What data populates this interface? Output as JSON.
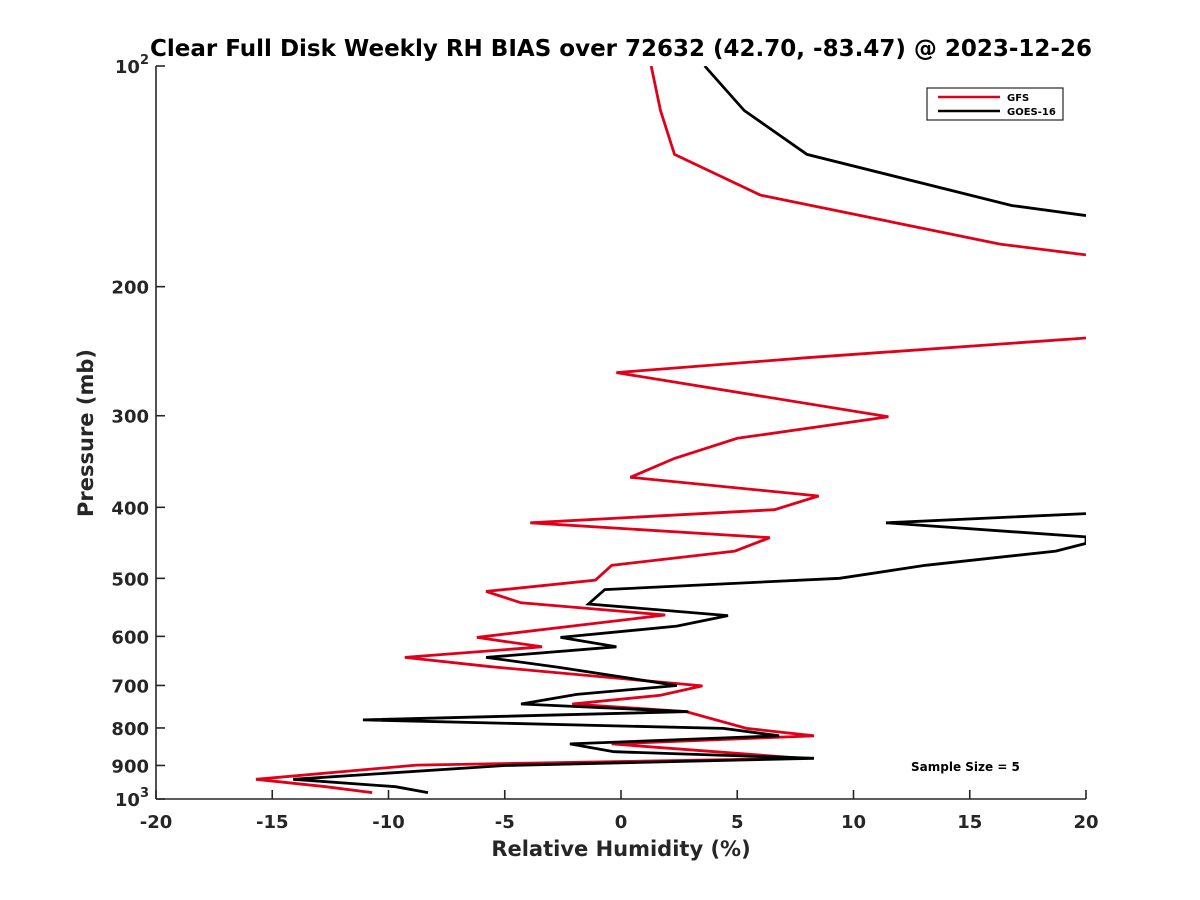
{
  "chart_data": {
    "type": "line",
    "title": "Clear Full Disk Weekly RH BIAS over 72632 (42.70, -83.47) @ 2023-12-26",
    "xlabel": "Relative Humidity (%)",
    "ylabel": "Pressure (mb)",
    "xlim": [
      -20,
      20
    ],
    "ylim": [
      100,
      1000
    ],
    "y_scale": "log",
    "y_reversed": true,
    "grid": false,
    "legend_position": "top-right",
    "annotation": "Sample Size = 5",
    "x_ticks": [
      {
        "value": -20,
        "label": "-20"
      },
      {
        "value": -15,
        "label": "-15"
      },
      {
        "value": -10,
        "label": "-10"
      },
      {
        "value": -5,
        "label": "-5"
      },
      {
        "value": 0,
        "label": "0"
      },
      {
        "value": 5,
        "label": "5"
      },
      {
        "value": 10,
        "label": "10"
      },
      {
        "value": 15,
        "label": "15"
      },
      {
        "value": 20,
        "label": "20"
      }
    ],
    "y_ticks": [
      {
        "value": 100,
        "base": "10",
        "exp": "2"
      },
      {
        "value": 200,
        "base": "200",
        "exp": ""
      },
      {
        "value": 300,
        "base": "300",
        "exp": ""
      },
      {
        "value": 400,
        "base": "400",
        "exp": ""
      },
      {
        "value": 500,
        "base": "500",
        "exp": ""
      },
      {
        "value": 600,
        "base": "600",
        "exp": ""
      },
      {
        "value": 700,
        "base": "700",
        "exp": ""
      },
      {
        "value": 800,
        "base": "800",
        "exp": ""
      },
      {
        "value": 900,
        "base": "900",
        "exp": ""
      },
      {
        "value": 1000,
        "base": "10",
        "exp": "3"
      }
    ],
    "series": [
      {
        "name": "GFS",
        "color": "#e0001a",
        "points": [
          [
            1.3,
            100
          ],
          [
            1.7,
            115
          ],
          [
            2.3,
            132
          ],
          [
            6.0,
            150
          ],
          [
            16.3,
            175
          ],
          [
            20,
            181
          ],
          [
            null,
            null
          ],
          [
            20,
            235
          ],
          [
            8.0,
            250
          ],
          [
            -0.2,
            262
          ],
          [
            11.5,
            301
          ],
          [
            5.0,
            322
          ],
          [
            2.3,
            343
          ],
          [
            0.4,
            364
          ],
          [
            8.5,
            386
          ],
          [
            6.6,
            403
          ],
          [
            -3.9,
            420
          ],
          [
            6.4,
            440
          ],
          [
            4.9,
            459
          ],
          [
            -0.4,
            480
          ],
          [
            -1.1,
            503
          ],
          [
            -5.8,
            521
          ],
          [
            -4.3,
            540
          ],
          [
            1.9,
            561
          ],
          [
            -6.2,
            602
          ],
          [
            -3.4,
            620
          ],
          [
            -9.3,
            641
          ],
          [
            -5.6,
            660
          ],
          [
            3.5,
            701
          ],
          [
            1.7,
            722
          ],
          [
            -2.1,
            742
          ],
          [
            2.8,
            760
          ],
          [
            5.4,
            801
          ],
          [
            8.3,
            820
          ],
          [
            -0.4,
            841
          ],
          [
            7.8,
            880
          ],
          [
            -8.8,
            899
          ],
          [
            -15.7,
            940
          ],
          [
            -12.7,
            962
          ],
          [
            -10.7,
            980
          ]
        ]
      },
      {
        "name": "GOES-16",
        "color": "#000000",
        "points": [
          [
            3.6,
            100
          ],
          [
            5.3,
            115
          ],
          [
            8.0,
            132
          ],
          [
            16.8,
            155
          ],
          [
            20,
            160
          ],
          [
            null,
            null
          ],
          [
            20,
            408
          ],
          [
            11.4,
            420
          ],
          [
            20,
            439
          ],
          [
            20,
            448
          ],
          [
            18.7,
            459
          ],
          [
            13.1,
            480
          ],
          [
            9.4,
            500
          ],
          [
            -0.7,
            518
          ],
          [
            -1.4,
            542
          ],
          [
            4.6,
            562
          ],
          [
            2.4,
            581
          ],
          [
            -2.6,
            602
          ],
          [
            -0.2,
            620
          ],
          [
            -5.8,
            641
          ],
          [
            -2.7,
            661
          ],
          [
            2.4,
            700
          ],
          [
            -1.9,
            720
          ],
          [
            -4.3,
            742
          ],
          [
            2.9,
            760
          ],
          [
            -11.1,
            780
          ],
          [
            4.4,
            801
          ],
          [
            6.8,
            820
          ],
          [
            -2.2,
            841
          ],
          [
            -0.3,
            862
          ],
          [
            8.3,
            880
          ],
          [
            -5.0,
            900
          ],
          [
            -14.1,
            940
          ],
          [
            -9.7,
            962
          ],
          [
            -8.3,
            980
          ]
        ]
      }
    ]
  }
}
